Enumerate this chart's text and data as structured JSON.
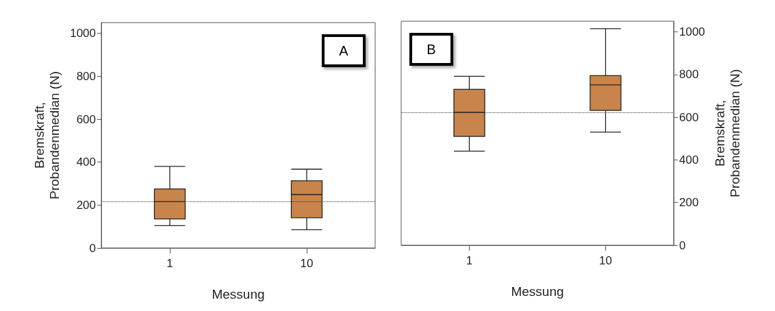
{
  "chart_data": [
    {
      "type": "box",
      "categories": [
        "1",
        "10"
      ],
      "xlabel": "Messung",
      "ylabel": "Bremskraft,\nProbandenmedian (N)",
      "ylim": [
        0,
        1050
      ],
      "yticks": [
        0,
        200,
        400,
        600,
        800,
        1000
      ],
      "grid": false,
      "annotations": [
        "A"
      ],
      "series": [
        {
          "color": "#c8844a",
          "boxes": [
            {
              "low": 104,
              "q1": 135,
              "median": 216,
              "q3": 275,
              "high": 380
            },
            {
              "low": 85,
              "q1": 141,
              "median": 249,
              "q3": 313,
              "high": 367
            }
          ]
        }
      ],
      "ref_lines": [
        {
          "axis": "y",
          "value": 216,
          "label": null,
          "line_style": "dotted",
          "color": "#333333"
        }
      ]
    },
    {
      "type": "box",
      "categories": [
        "1",
        "10"
      ],
      "xlabel": "Messung",
      "y2label": "Bremskraft,\nProbandenmedian (N)",
      "y2lim": [
        0,
        1050
      ],
      "y2ticks": [
        0,
        200,
        400,
        600,
        800,
        1000
      ],
      "grid": false,
      "annotations": [
        "B"
      ],
      "series": [
        {
          "color": "#c8844a",
          "axis": "y2",
          "boxes": [
            {
              "low": 441,
              "q1": 510,
              "median": 623,
              "q3": 731,
              "high": 792
            },
            {
              "low": 530,
              "q1": 632,
              "median": 752,
              "q3": 795,
              "high": 1015
            }
          ]
        }
      ],
      "ref_lines": [
        {
          "axis": "y2",
          "value": 623,
          "label": null,
          "line_style": "dotted",
          "color": "#333333"
        }
      ]
    }
  ]
}
